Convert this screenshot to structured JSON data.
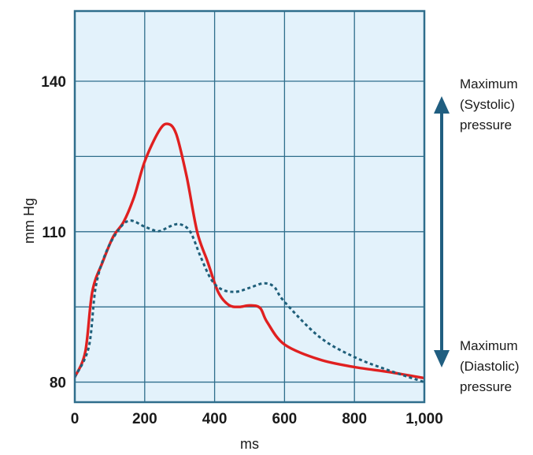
{
  "chart_data": {
    "type": "line",
    "xlabel": "ms",
    "ylabel": "mm Hg",
    "xlim": [
      0,
      1000
    ],
    "ylim": [
      76,
      154
    ],
    "grid": true,
    "x_ticks": [
      {
        "value": 0,
        "label": "0"
      },
      {
        "value": 200,
        "label": "200"
      },
      {
        "value": 400,
        "label": "400"
      },
      {
        "value": 600,
        "label": "600"
      },
      {
        "value": 800,
        "label": "800"
      },
      {
        "value": 1000,
        "label": "1,000"
      }
    ],
    "y_ticks": [
      {
        "value": 80,
        "label": "80"
      },
      {
        "value": 110,
        "label": "110"
      },
      {
        "value": 140,
        "label": "140"
      }
    ],
    "x_grid": [
      200,
      400,
      600,
      800
    ],
    "y_grid": [
      80,
      95,
      110,
      125,
      140
    ],
    "series": [
      {
        "style": "solid",
        "color": "#e02020",
        "points": [
          [
            0,
            81
          ],
          [
            30,
            86
          ],
          [
            50,
            98
          ],
          [
            80,
            104
          ],
          [
            110,
            109
          ],
          [
            140,
            112
          ],
          [
            170,
            117
          ],
          [
            200,
            124
          ],
          [
            240,
            130
          ],
          [
            265,
            131.5
          ],
          [
            290,
            129.5
          ],
          [
            320,
            121
          ],
          [
            350,
            110
          ],
          [
            380,
            104
          ],
          [
            410,
            98
          ],
          [
            440,
            95.4
          ],
          [
            470,
            95
          ],
          [
            500,
            95.3
          ],
          [
            530,
            94.8
          ],
          [
            550,
            92
          ],
          [
            600,
            87.5
          ],
          [
            700,
            84.5
          ],
          [
            800,
            83
          ],
          [
            900,
            82
          ],
          [
            1000,
            80.8
          ]
        ]
      },
      {
        "style": "dashed",
        "color": "#1f5f7a",
        "points": [
          [
            0,
            81
          ],
          [
            40,
            87
          ],
          [
            60,
            99
          ],
          [
            90,
            106
          ],
          [
            130,
            110.8
          ],
          [
            160,
            112.2
          ],
          [
            200,
            111
          ],
          [
            240,
            110.1
          ],
          [
            270,
            111
          ],
          [
            300,
            111.5
          ],
          [
            330,
            110
          ],
          [
            360,
            105
          ],
          [
            390,
            100.5
          ],
          [
            420,
            98.5
          ],
          [
            460,
            98
          ],
          [
            500,
            98.8
          ],
          [
            540,
            99.7
          ],
          [
            570,
            99
          ],
          [
            600,
            96
          ],
          [
            700,
            89
          ],
          [
            800,
            85
          ],
          [
            900,
            82.3
          ],
          [
            1000,
            80
          ]
        ]
      }
    ],
    "annotations": {
      "top": [
        "Maximum",
        "(Systolic)",
        "pressure"
      ],
      "bottom": [
        "Maximum",
        "(Diastolic)",
        "pressure"
      ]
    }
  },
  "colors": {
    "plot_background": "#e3f2fb",
    "grid": "#2f6e8c",
    "arrow": "#205e80"
  }
}
